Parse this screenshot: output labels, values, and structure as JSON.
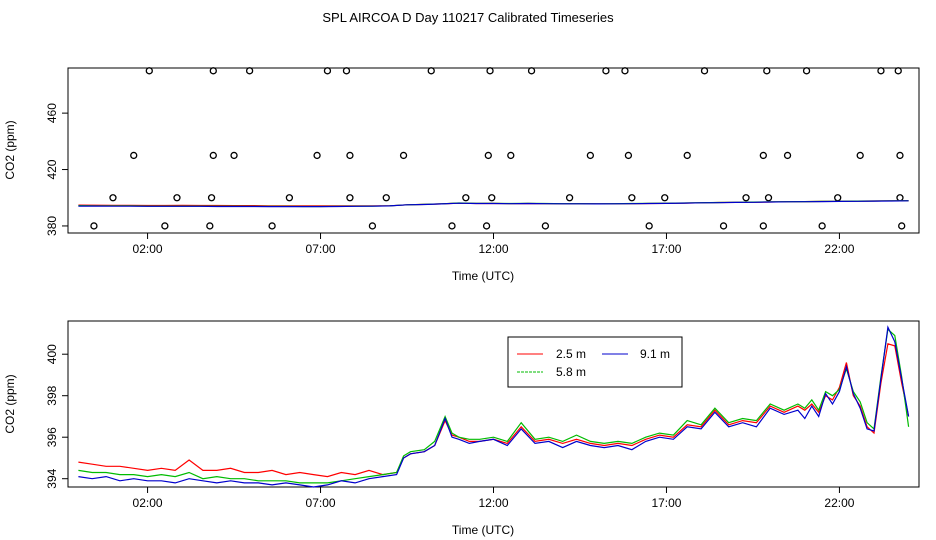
{
  "title": "SPL AIRCOA D  Day 110217  Calibrated Timeseries",
  "chart_data": [
    {
      "type": "line",
      "xlabel": "Time (UTC)",
      "ylabel": "CO2 (ppm)",
      "xlim": [
        -0.3,
        24.3
      ],
      "ylim": [
        375,
        492
      ],
      "xticks": [
        2,
        7,
        12,
        17,
        22
      ],
      "xtick_labels": [
        "02:00",
        "07:00",
        "12:00",
        "17:00",
        "22:00"
      ],
      "yticks": [
        380,
        420,
        460
      ],
      "grid": false,
      "series": [
        {
          "name": "2.5 m",
          "color": "#ff0000",
          "x": [
            0.0,
            0.5,
            1.0,
            1.5,
            2.0,
            2.5,
            3.0,
            3.5,
            4.0,
            4.5,
            5.0,
            5.5,
            6.0,
            6.5,
            7.0,
            7.5,
            8.0,
            8.5,
            9.0,
            9.5,
            10.0,
            10.5,
            11.0,
            11.5,
            12.0,
            12.5,
            13.0,
            13.5,
            14.0,
            14.5,
            15.0,
            15.5,
            16.0,
            16.5,
            17.0,
            17.5,
            18.0,
            18.5,
            19.0,
            19.5,
            20.0,
            20.5,
            21.0,
            21.5,
            22.0,
            22.5,
            23.0,
            23.5,
            24.0
          ],
          "y": [
            394.8,
            394.7,
            394.6,
            394.6,
            394.5,
            394.5,
            394.6,
            394.5,
            394.5,
            394.4,
            394.4,
            394.3,
            394.3,
            394.2,
            394.2,
            394.2,
            394.2,
            394.2,
            394.3,
            395.0,
            395.3,
            395.6,
            396.2,
            395.9,
            396.0,
            395.8,
            395.9,
            395.8,
            395.7,
            395.8,
            395.7,
            395.7,
            395.8,
            395.9,
            396.0,
            396.2,
            396.4,
            396.6,
            396.7,
            396.8,
            397.0,
            397.2,
            397.3,
            397.4,
            397.5,
            397.6,
            397.7,
            397.8,
            397.9
          ]
        },
        {
          "name": "5.8 m",
          "color": "#00bb00",
          "x": [
            0.0,
            0.5,
            1.0,
            1.5,
            2.0,
            2.5,
            3.0,
            3.5,
            4.0,
            4.5,
            5.0,
            5.5,
            6.0,
            6.5,
            7.0,
            7.5,
            8.0,
            8.5,
            9.0,
            9.5,
            10.0,
            10.5,
            11.0,
            11.5,
            12.0,
            12.5,
            13.0,
            13.5,
            14.0,
            14.5,
            15.0,
            15.5,
            16.0,
            16.5,
            17.0,
            17.5,
            18.0,
            18.5,
            19.0,
            19.5,
            20.0,
            20.5,
            21.0,
            21.5,
            22.0,
            22.5,
            23.0,
            23.5,
            24.0
          ],
          "y": [
            394.4,
            394.3,
            394.2,
            394.2,
            394.1,
            394.1,
            394.1,
            394.1,
            394.0,
            394.0,
            393.9,
            393.9,
            393.9,
            393.8,
            393.8,
            393.9,
            394.0,
            394.1,
            394.3,
            395.0,
            395.3,
            395.7,
            396.3,
            396.0,
            396.0,
            395.9,
            396.0,
            395.9,
            395.8,
            395.8,
            395.7,
            395.8,
            395.9,
            396.0,
            396.1,
            396.3,
            396.5,
            396.6,
            396.8,
            396.9,
            397.1,
            397.2,
            397.3,
            397.4,
            397.5,
            397.6,
            397.7,
            397.8,
            397.9
          ]
        },
        {
          "name": "9.1 m",
          "color": "#0000cc",
          "x": [
            0.0,
            0.5,
            1.0,
            1.5,
            2.0,
            2.5,
            3.0,
            3.5,
            4.0,
            4.5,
            5.0,
            5.5,
            6.0,
            6.5,
            7.0,
            7.5,
            8.0,
            8.5,
            9.0,
            9.5,
            10.0,
            10.5,
            11.0,
            11.5,
            12.0,
            12.5,
            13.0,
            13.5,
            14.0,
            14.5,
            15.0,
            15.5,
            16.0,
            16.5,
            17.0,
            17.5,
            18.0,
            18.5,
            19.0,
            19.5,
            20.0,
            20.5,
            21.0,
            21.5,
            22.0,
            22.5,
            23.0,
            23.5,
            24.0
          ],
          "y": [
            394.1,
            394.1,
            394.0,
            394.0,
            393.9,
            393.9,
            393.9,
            393.9,
            393.8,
            393.8,
            393.8,
            393.7,
            393.7,
            393.7,
            393.7,
            393.8,
            393.9,
            394.0,
            394.2,
            395.0,
            395.2,
            395.6,
            396.1,
            395.9,
            395.9,
            395.8,
            395.9,
            395.8,
            395.7,
            395.7,
            395.6,
            395.7,
            395.8,
            395.9,
            396.0,
            396.2,
            396.4,
            396.5,
            396.7,
            396.8,
            397.0,
            397.1,
            397.2,
            397.3,
            397.4,
            397.5,
            397.6,
            397.7,
            397.8
          ]
        }
      ],
      "points": {
        "x": [
          0.45,
          1.0,
          2.05,
          1.6,
          2.85,
          2.5,
          3.8,
          3.9,
          3.9,
          3.85,
          4.5,
          4.95,
          5.6,
          6.1,
          6.9,
          7.2,
          7.75,
          7.85,
          7.85,
          8.5,
          8.9,
          9.4,
          10.2,
          10.8,
          11.2,
          11.8,
          11.85,
          11.9,
          11.95,
          12.5,
          13.1,
          13.5,
          14.2,
          14.8,
          15.25,
          15.8,
          15.9,
          16.0,
          16.5,
          16.95,
          17.6,
          18.1,
          18.65,
          19.3,
          19.8,
          19.8,
          19.9,
          19.95,
          20.5,
          21.05,
          21.5,
          21.95,
          22.6,
          23.2,
          23.7,
          23.75,
          23.75,
          23.8
        ],
        "y": [
          380,
          400,
          490,
          430,
          400,
          380,
          380,
          430,
          490,
          400,
          430,
          490,
          380,
          400,
          430,
          490,
          490,
          430,
          400,
          380,
          400,
          430,
          490,
          380,
          400,
          380,
          430,
          490,
          400,
          430,
          490,
          380,
          400,
          430,
          490,
          490,
          430,
          400,
          380,
          400,
          430,
          490,
          380,
          400,
          380,
          430,
          490,
          400,
          430,
          490,
          380,
          400,
          430,
          490,
          490,
          430,
          400,
          380
        ]
      }
    },
    {
      "type": "line",
      "xlabel": "Time (UTC)",
      "ylabel": "CO2 (ppm)",
      "xlim": [
        -0.3,
        24.3
      ],
      "ylim": [
        393.6,
        401.6
      ],
      "xticks": [
        2,
        7,
        12,
        17,
        22
      ],
      "xtick_labels": [
        "02:00",
        "07:00",
        "12:00",
        "17:00",
        "22:00"
      ],
      "yticks": [
        394,
        396,
        398,
        400
      ],
      "grid": false,
      "legend": "top-center",
      "series": [
        {
          "name": "2.5 m",
          "color": "#ff0000",
          "x": [
            0.0,
            0.4,
            0.8,
            1.2,
            1.6,
            2.0,
            2.4,
            2.8,
            3.2,
            3.6,
            4.0,
            4.4,
            4.8,
            5.2,
            5.6,
            6.0,
            6.4,
            6.8,
            7.2,
            7.6,
            8.0,
            8.4,
            8.8,
            9.2,
            9.4,
            9.6,
            10.0,
            10.3,
            10.6,
            10.8,
            11.0,
            11.3,
            11.6,
            12.0,
            12.4,
            12.8,
            13.2,
            13.6,
            14.0,
            14.4,
            14.8,
            15.2,
            15.6,
            16.0,
            16.4,
            16.8,
            17.2,
            17.6,
            18.0,
            18.4,
            18.8,
            19.2,
            19.6,
            20.0,
            20.4,
            20.8,
            21.0,
            21.2,
            21.4,
            21.6,
            21.8,
            22.0,
            22.2,
            22.4,
            22.6,
            22.8,
            23.0,
            23.2,
            23.4,
            23.6,
            23.8,
            24.0
          ],
          "y": [
            394.8,
            394.7,
            394.6,
            394.6,
            394.5,
            394.4,
            394.5,
            394.4,
            394.9,
            394.4,
            394.4,
            394.5,
            394.3,
            394.3,
            394.4,
            394.2,
            394.3,
            394.2,
            394.1,
            394.3,
            394.2,
            394.4,
            394.2,
            394.3,
            395.0,
            395.2,
            395.3,
            395.6,
            396.8,
            396.1,
            396.0,
            395.8,
            395.8,
            395.9,
            395.7,
            396.5,
            395.8,
            395.9,
            395.7,
            395.9,
            395.7,
            395.6,
            395.7,
            395.6,
            395.9,
            396.1,
            396.0,
            396.6,
            396.5,
            397.3,
            396.6,
            396.8,
            396.7,
            397.5,
            397.2,
            397.5,
            397.3,
            397.6,
            397.2,
            398.0,
            397.8,
            398.4,
            399.6,
            398.0,
            397.5,
            396.5,
            396.2,
            398.6,
            400.5,
            400.4,
            398.6,
            397.0
          ]
        },
        {
          "name": "5.8 m",
          "color": "#00bb00",
          "x": [
            0.0,
            0.4,
            0.8,
            1.2,
            1.6,
            2.0,
            2.4,
            2.8,
            3.2,
            3.6,
            4.0,
            4.4,
            4.8,
            5.2,
            5.6,
            6.0,
            6.4,
            6.8,
            7.2,
            7.6,
            8.0,
            8.4,
            8.8,
            9.2,
            9.4,
            9.6,
            10.0,
            10.3,
            10.6,
            10.8,
            11.0,
            11.3,
            11.6,
            12.0,
            12.4,
            12.8,
            13.2,
            13.6,
            14.0,
            14.4,
            14.8,
            15.2,
            15.6,
            16.0,
            16.4,
            16.8,
            17.2,
            17.6,
            18.0,
            18.4,
            18.8,
            19.2,
            19.6,
            20.0,
            20.4,
            20.8,
            21.0,
            21.2,
            21.4,
            21.6,
            21.8,
            22.0,
            22.2,
            22.4,
            22.6,
            22.8,
            23.0,
            23.2,
            23.4,
            23.6,
            23.8,
            24.0
          ],
          "y": [
            394.4,
            394.3,
            394.3,
            394.2,
            394.2,
            394.1,
            394.2,
            394.1,
            394.3,
            394.0,
            394.1,
            394.0,
            394.0,
            393.9,
            393.9,
            393.9,
            393.8,
            393.8,
            393.8,
            393.9,
            394.0,
            394.1,
            394.2,
            394.3,
            395.1,
            395.3,
            395.4,
            395.8,
            397.0,
            396.2,
            396.0,
            395.9,
            395.9,
            396.0,
            395.8,
            396.7,
            395.9,
            396.0,
            395.8,
            396.1,
            395.8,
            395.7,
            395.8,
            395.7,
            396.0,
            396.2,
            396.1,
            396.8,
            396.6,
            397.4,
            396.7,
            396.9,
            396.8,
            397.6,
            397.3,
            397.6,
            397.4,
            397.8,
            397.3,
            398.2,
            398.0,
            398.3,
            399.3,
            398.2,
            397.7,
            396.7,
            396.4,
            398.9,
            401.2,
            400.9,
            398.9,
            396.5
          ]
        },
        {
          "name": "9.1 m",
          "color": "#0000cc",
          "x": [
            0.0,
            0.4,
            0.8,
            1.2,
            1.6,
            2.0,
            2.4,
            2.8,
            3.2,
            3.6,
            4.0,
            4.4,
            4.8,
            5.2,
            5.6,
            6.0,
            6.4,
            6.8,
            7.2,
            7.6,
            8.0,
            8.4,
            8.8,
            9.2,
            9.4,
            9.6,
            10.0,
            10.3,
            10.6,
            10.8,
            11.0,
            11.3,
            11.6,
            12.0,
            12.4,
            12.8,
            13.2,
            13.6,
            14.0,
            14.4,
            14.8,
            15.2,
            15.6,
            16.0,
            16.4,
            16.8,
            17.2,
            17.6,
            18.0,
            18.4,
            18.8,
            19.2,
            19.6,
            20.0,
            20.4,
            20.8,
            21.0,
            21.2,
            21.4,
            21.6,
            21.8,
            22.0,
            22.2,
            22.4,
            22.6,
            22.8,
            23.0,
            23.2,
            23.4,
            23.6,
            23.8,
            24.0
          ],
          "y": [
            394.1,
            394.0,
            394.1,
            393.9,
            394.0,
            393.9,
            393.9,
            393.8,
            394.0,
            393.9,
            393.8,
            393.9,
            393.8,
            393.8,
            393.7,
            393.8,
            393.7,
            393.6,
            393.7,
            393.9,
            393.8,
            394.0,
            394.1,
            394.2,
            395.0,
            395.2,
            395.3,
            395.6,
            396.9,
            396.0,
            395.9,
            395.7,
            395.8,
            395.9,
            395.6,
            396.4,
            395.7,
            395.8,
            395.5,
            395.8,
            395.6,
            395.5,
            395.6,
            395.4,
            395.8,
            396.0,
            395.9,
            396.5,
            396.4,
            397.2,
            396.5,
            396.7,
            396.5,
            397.4,
            397.1,
            397.3,
            396.9,
            397.5,
            397.0,
            398.1,
            397.6,
            398.2,
            399.4,
            398.1,
            397.4,
            396.4,
            396.3,
            398.8,
            401.3,
            400.6,
            398.8,
            397.0
          ]
        }
      ]
    }
  ]
}
